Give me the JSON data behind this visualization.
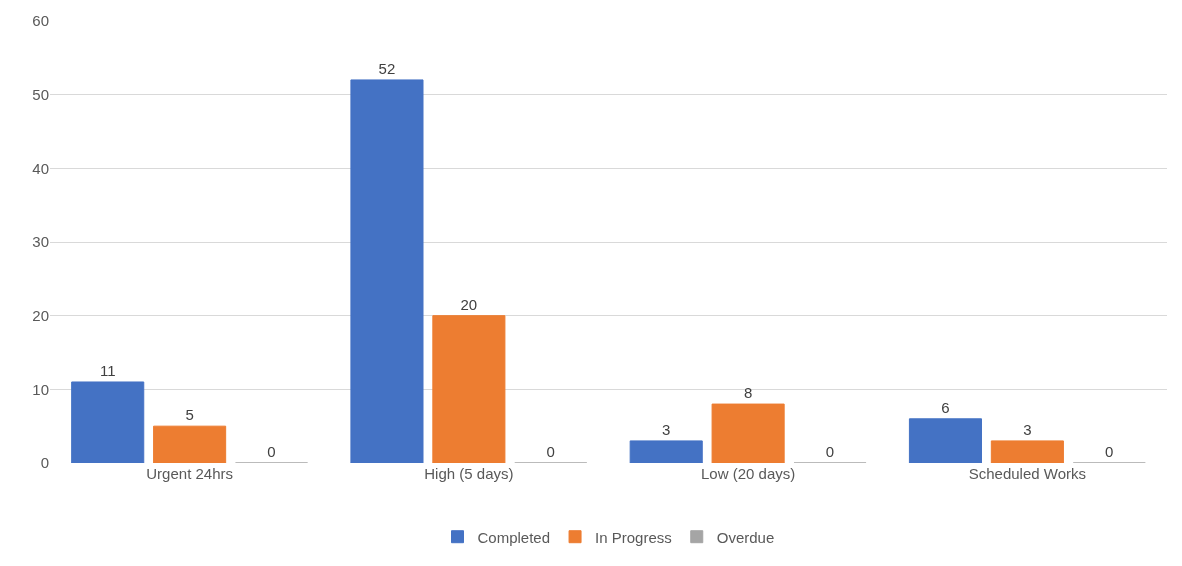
{
  "chart_data": {
    "type": "bar",
    "categories": [
      "Urgent 24hrs",
      "High (5 days)",
      "Low (20 days)",
      "Scheduled Works"
    ],
    "series": [
      {
        "name": "Completed",
        "color": "#4472c4",
        "values": [
          11,
          52,
          3,
          6
        ]
      },
      {
        "name": "In Progress",
        "color": "#ed7d31",
        "values": [
          5,
          20,
          8,
          3
        ]
      },
      {
        "name": "Overdue",
        "color": "#a5a5a5",
        "values": [
          0,
          0,
          0,
          0
        ]
      }
    ],
    "ylim": [
      0,
      60
    ],
    "yticks": [
      0,
      10,
      20,
      30,
      40,
      50,
      60
    ],
    "grid": "y",
    "legend": "bottom",
    "data_labels": true
  }
}
